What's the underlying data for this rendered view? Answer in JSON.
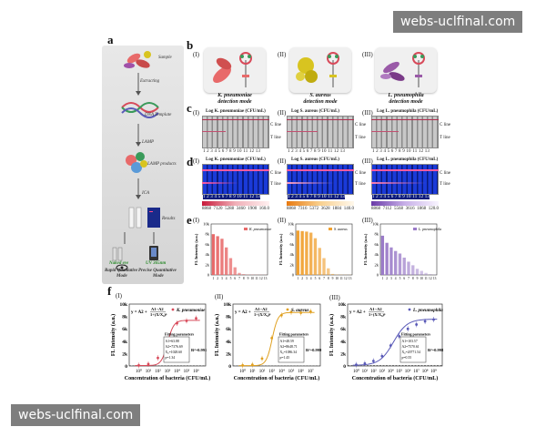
{
  "watermarks": {
    "top": "webs-uclfinal.com",
    "bottom": "webs-uclfinal.com"
  },
  "panel_labels": {
    "a": "a",
    "b": "b",
    "c": "c",
    "d": "d",
    "e": "e",
    "f": "f"
  },
  "roman": [
    "(I)",
    "(II)",
    "(III)"
  ],
  "workflow": {
    "steps": [
      "Sample",
      "Extracting",
      "DNA Template",
      "LAMP",
      "LAMP products",
      "ICA",
      "Results"
    ],
    "bottom_left": [
      "Rapid Qualitative",
      "Mode"
    ],
    "bottom_right": [
      "Precise Quantitative",
      "Mode"
    ],
    "naked_eye": "Naked eye",
    "uv": "UV 365nm"
  },
  "modes": [
    {
      "species": "K. pneumoniae",
      "line2": "detection mode",
      "color": "#e86a6a"
    },
    {
      "species": "S. aureus",
      "line2": "detection mode",
      "color": "#d8c420"
    },
    {
      "species": "L. pneumophila",
      "line2": "detection mode",
      "color": "#9a5aa8"
    }
  ],
  "strips": {
    "titles": [
      "Log K. pneumoniae (CFU/mL)",
      "Log S. aureus (CFU/mL)",
      "Log L. pneumophila (CFU/mL)"
    ],
    "numbers": "1 2 3 4 5 6 7 8 9 10 11 12 13",
    "c_line": "C line",
    "t_line": "T line",
    "gradient_values": [
      [
        "8868",
        "7120",
        "5288",
        "3460",
        "1900",
        "160.0"
      ],
      [
        "8868",
        "7316",
        "5372",
        "3628",
        "1884",
        "140.0"
      ],
      [
        "8868",
        "7112",
        "5568",
        "3616",
        "1868",
        "120.0"
      ]
    ]
  },
  "panel_e": {
    "ylabel": "FL Intensity (a.u.)",
    "yticks": [
      "10k",
      "8k",
      "6k",
      "4k",
      "2k",
      "0"
    ],
    "xticks": "1 2 3 4 5 6 7 8 9 10 11 12 13",
    "legends": [
      "K. pneumoniae",
      "S. aureus",
      "L. pneumophila"
    ],
    "colors": [
      "#e86a6a",
      "#f0a030",
      "#9a7ac8"
    ]
  },
  "panel_f": {
    "ylabel": "FL Intensity (a.u.)",
    "xlabel": "Concentration of bacteria (CFU/mL)",
    "yticks": [
      "10k",
      "8k",
      "6k",
      "4k",
      "2k",
      "0"
    ],
    "equation_head": "y = A2 +",
    "equation_num": "A1−A2",
    "equation_den": "1+(X/X₀)ᵖ",
    "fit_title": "Fitting parameters",
    "charts": [
      {
        "legend": "K. pneumoniae",
        "r2": "R²=0.991",
        "params": [
          "A1=63.88",
          "A2=7376.69",
          "X₀=1028.60",
          "p=1.34"
        ],
        "xticks": [
          "10⁰",
          "10¹",
          "10²",
          "10³",
          "10⁴",
          "10⁵",
          "10⁶"
        ],
        "color": "#d84a5a"
      },
      {
        "legend": "S. aureus",
        "r2": "R²=0.999",
        "params": [
          "A1=48.59",
          "A2=8648.71",
          "X₀=1086.34",
          "p=1.45"
        ],
        "xticks": [
          "10⁰",
          "10¹",
          "10²",
          "10³",
          "10⁴",
          "10⁵",
          "10⁶",
          "10⁷"
        ],
        "color": "#e0a020"
      },
      {
        "legend": "L. pneumophila",
        "r2": "R²=0.998",
        "params": [
          "A1=103.57",
          "A2=7570.61",
          "X₀=20771.54",
          "p=0.55"
        ],
        "xticks": [
          "10⁰",
          "10¹",
          "10²",
          "10³",
          "10⁴",
          "10⁵",
          "10⁶",
          "10⁷",
          "10⁸",
          "10⁹"
        ],
        "color": "#5a5ab8"
      }
    ]
  },
  "chart_data": [
    {
      "type": "bar",
      "series": [
        {
          "name": "K. pneumoniae",
          "values": [
            8000,
            7600,
            7100,
            5400,
            3300,
            1500,
            400,
            150,
            80,
            70,
            60,
            60,
            60
          ]
        },
        {
          "name": "S. aureus",
          "values": [
            8700,
            8600,
            8500,
            8300,
            7200,
            5300,
            3300,
            1300,
            200,
            80,
            70,
            60,
            60
          ]
        },
        {
          "name": "L. pneumophila",
          "values": [
            7700,
            6300,
            5400,
            4700,
            4200,
            3400,
            2600,
            1900,
            1200,
            800,
            400,
            150,
            80
          ]
        }
      ],
      "categories": [
        "1",
        "2",
        "3",
        "4",
        "5",
        "6",
        "7",
        "8",
        "9",
        "10",
        "11",
        "12",
        "13"
      ],
      "ylabel": "FL Intensity (a.u.)",
      "ylim": [
        0,
        10000
      ]
    },
    {
      "type": "scatter",
      "series": [
        {
          "name": "K. pneumoniae",
          "x": [
            0,
            1,
            2,
            3,
            4,
            5,
            6
          ],
          "y": [
            100,
            300,
            1300,
            4300,
            6900,
            7300,
            7700
          ],
          "color": "#d84a5a",
          "A1": 63.88,
          "A2": 7376.69,
          "X0": 1028.6,
          "p": 1.34,
          "xmin": -1,
          "xmax": 7
        },
        {
          "name": "S. aureus",
          "x": [
            0,
            1,
            2,
            3,
            4,
            5,
            6,
            7
          ],
          "y": [
            100,
            200,
            1200,
            4500,
            8200,
            8700,
            8600,
            8800
          ],
          "color": "#e0a020",
          "A1": 48.59,
          "A2": 8648.71,
          "X0": 1086.34,
          "p": 1.45,
          "xmin": -1,
          "xmax": 8
        },
        {
          "name": "L. pneumophila",
          "x": [
            0,
            1,
            2,
            3,
            4,
            5,
            6,
            7,
            8,
            9
          ],
          "y": [
            200,
            400,
            800,
            1600,
            3300,
            4800,
            6000,
            6700,
            7200,
            7500
          ],
          "color": "#5a5ab8",
          "A1": 103.57,
          "A2": 7570.61,
          "X0": 20771.54,
          "p": 0.55,
          "xmin": -1,
          "xmax": 10
        }
      ],
      "xlabel": "Concentration of bacteria (CFU/mL)",
      "ylabel": "FL Intensity (a.u.)",
      "ylim": [
        0,
        10000
      ]
    }
  ]
}
